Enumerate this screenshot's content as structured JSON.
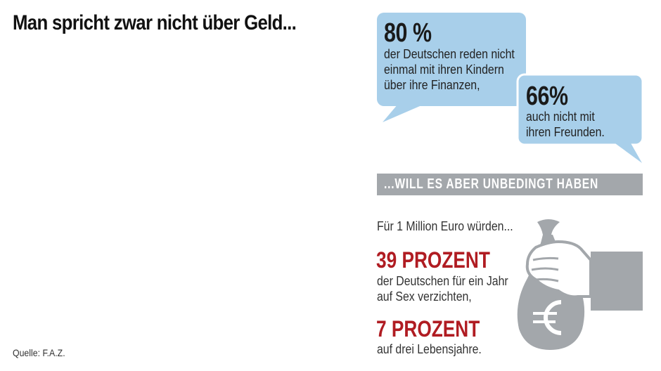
{
  "headline": "Man spricht zwar nicht über Geld...",
  "bubble1": {
    "stat": "80 %",
    "lines": [
      "der Deutschen reden nicht",
      "einmal mit ihren Kindern",
      "über ihre Finanzen,"
    ]
  },
  "bubble2": {
    "stat": "66%",
    "lines": [
      "auch nicht mit",
      "ihren Freunden."
    ]
  },
  "banner": "...WILL ES ABER UNBEDINGT HABEN",
  "intro": "Für 1 Million Euro würden...",
  "fact1": {
    "stat": "39 PROZENT",
    "lines": [
      "der Deutschen für ein Jahr",
      "auf Sex verzichten,"
    ]
  },
  "fact2": {
    "stat": "7 PROZENT",
    "lines": [
      "auf drei Lebensjahre."
    ]
  },
  "source": "Quelle: F.A.Z.",
  "colors": {
    "bubble": "#a8cfea",
    "banner": "#a3a7ab",
    "accent_red": "#b01c22",
    "bag": "#a3a7ab"
  },
  "icons": {
    "bag": "money-bag-icon",
    "euro": "euro-icon",
    "hand": "hand-icon"
  }
}
